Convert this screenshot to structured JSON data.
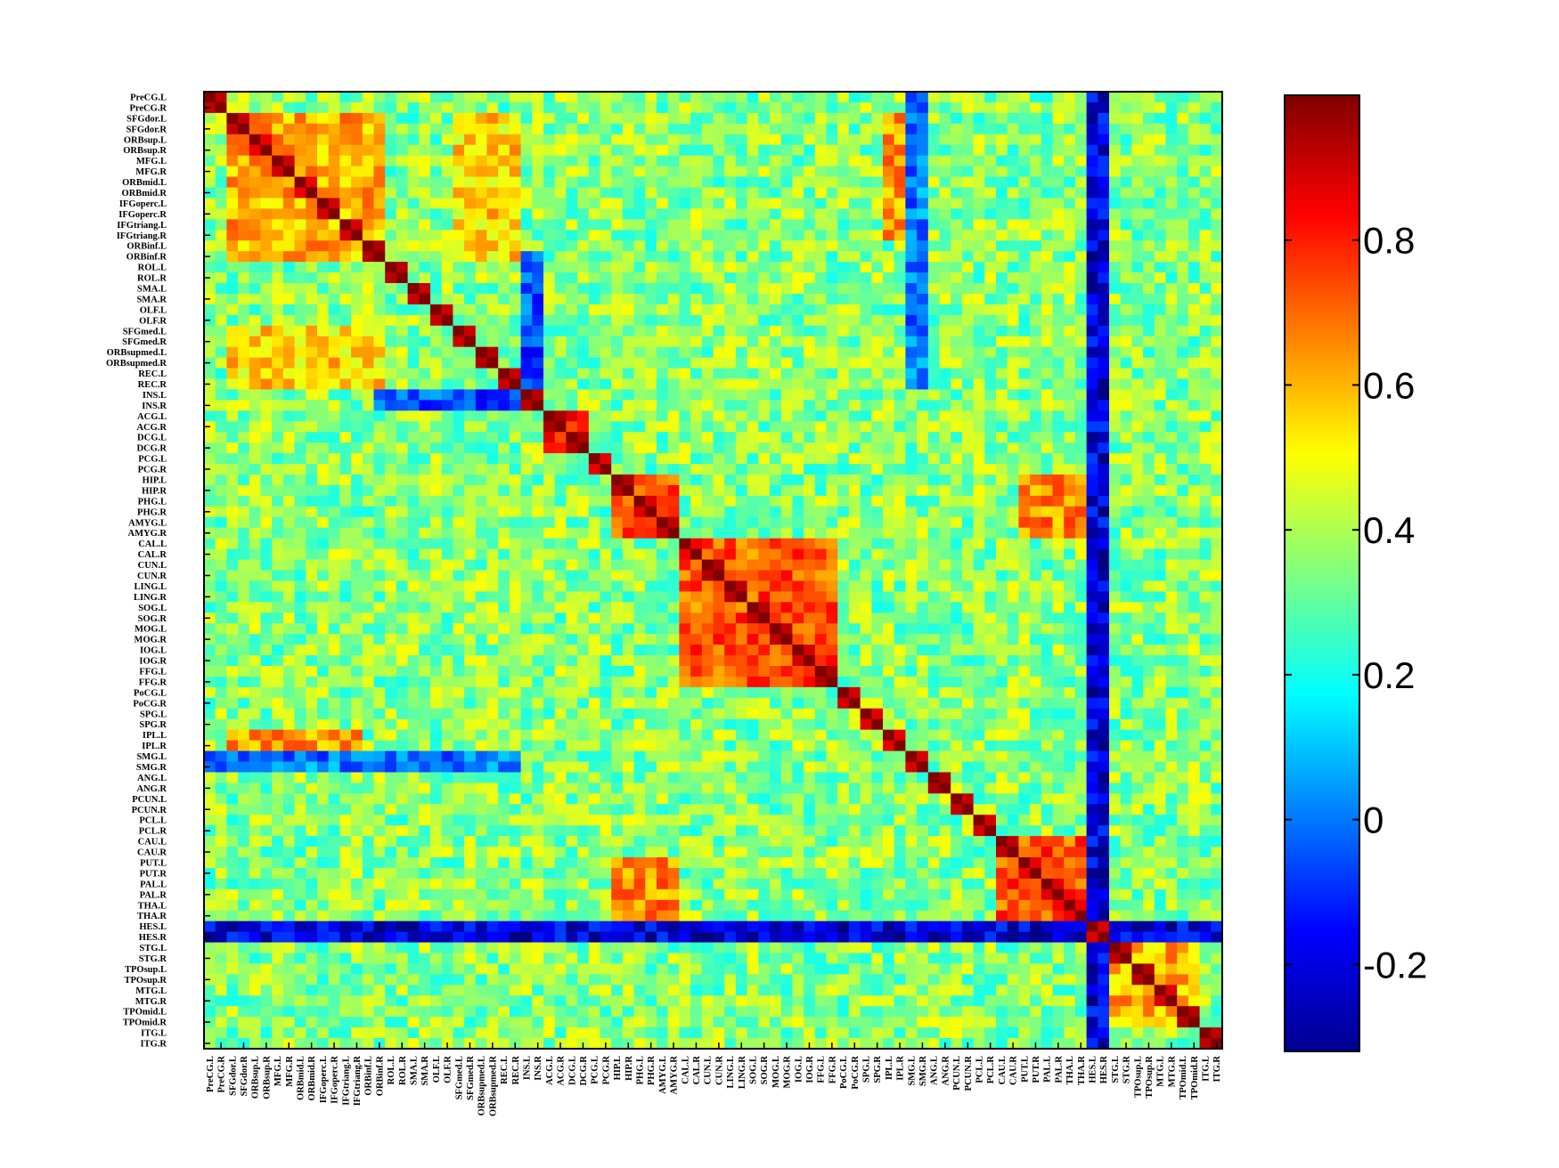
{
  "chart_data": {
    "type": "heatmap",
    "title": "",
    "xlabel": "",
    "ylabel": "",
    "labels": [
      "PreCG.L",
      "PreCG.R",
      "SFGdor.L",
      "SFGdor.R",
      "ORBsup.L",
      "ORBsup.R",
      "MFG.L",
      "MFG.R",
      "ORBmid.L",
      "ORBmid.R",
      "IFGoperc.L",
      "IFGoperc.R",
      "IFGtriang.L",
      "IFGtriang.R",
      "ORBinf.L",
      "ORBinf.R",
      "ROL.L",
      "ROL.R",
      "SMA.L",
      "SMA.R",
      "OLF.L",
      "OLF.R",
      "SFGmed.L",
      "SFGmed.R",
      "ORBsupmed.L",
      "ORBsupmed.R",
      "REC.L",
      "REC.R",
      "INS.L",
      "INS.R",
      "ACG.L",
      "ACG.R",
      "DCG.L",
      "DCG.R",
      "PCG.L",
      "PCG.R",
      "HIP.L",
      "HIP.R",
      "PHG.L",
      "PHG.R",
      "AMYG.L",
      "AMYG.R",
      "CAL.L",
      "CAL.R",
      "CUN.L",
      "CUN.R",
      "LING.L",
      "LING.R",
      "SOG.L",
      "SOG.R",
      "MOG.L",
      "MOG.R",
      "IOG.L",
      "IOG.R",
      "FFG.L",
      "FFG.R",
      "PoCG.L",
      "PoCG.R",
      "SPG.L",
      "SPG.R",
      "IPL.L",
      "IPL.R",
      "SMG.L",
      "SMG.R",
      "ANG.L",
      "ANG.R",
      "PCUN.L",
      "PCUN.R",
      "PCL.L",
      "PCL.R",
      "CAU.L",
      "CAU.R",
      "PUT.L",
      "PUT.R",
      "PAL.L",
      "PAL.R",
      "THA.L",
      "THA.R",
      "HES.L",
      "HES.R",
      "STG.L",
      "STG.R",
      "TPOsup.L",
      "TPOsup.R",
      "MTG.L",
      "MTG.R",
      "TPOmid.L",
      "TPOmid.R",
      "ITG.L",
      "ITG.R"
    ],
    "colorscale": "jet",
    "clim": [
      -0.32,
      1.0
    ],
    "colorbar_ticks": [
      -0.2,
      0,
      0.2,
      0.4,
      0.6,
      0.8
    ],
    "colorbar_tick_labels": [
      "-0.2",
      "0",
      "0.2",
      "0.4",
      "0.6",
      "0.8"
    ],
    "diagonal": 1.0,
    "blocks": [
      {
        "rows": [
          "SFGdor.L",
          "ORBinf.R"
        ],
        "cols": [
          "SFGdor.L",
          "ORBinf.R"
        ],
        "value": 0.6
      },
      {
        "rows": [
          "SFGdor.L",
          "ORBinf.R"
        ],
        "cols": [
          "SFGmed.L",
          "REC.R"
        ],
        "value": 0.55
      },
      {
        "rows": [
          "ACG.L",
          "DCG.R"
        ],
        "cols": [
          "ACG.L",
          "DCG.R"
        ],
        "value": 0.78
      },
      {
        "rows": [
          "HIP.L",
          "AMYG.R"
        ],
        "cols": [
          "HIP.L",
          "AMYG.R"
        ],
        "value": 0.72
      },
      {
        "rows": [
          "CAL.L",
          "FFG.R"
        ],
        "cols": [
          "CAL.L",
          "FFG.R"
        ],
        "value": 0.72
      },
      {
        "rows": [
          "CAU.L",
          "THA.R"
        ],
        "cols": [
          "CAU.L",
          "THA.R"
        ],
        "value": 0.72
      },
      {
        "rows": [
          "STG.L",
          "TPOmid.R"
        ],
        "cols": [
          "STG.L",
          "TPOmid.R"
        ],
        "value": 0.6
      },
      {
        "rows": [
          "HES.L",
          "HES.R"
        ],
        "cols": [
          "all"
        ],
        "value": -0.2
      },
      {
        "rows": [
          "INS.L",
          "INS.R"
        ],
        "cols": [
          "ORBinf.R",
          "REC.R"
        ],
        "value": -0.05
      },
      {
        "rows": [
          "SMG.L",
          "SMG.R"
        ],
        "cols": [
          "PreCG.L",
          "REC.R"
        ],
        "value": 0.0
      },
      {
        "rows": [
          "IPL.L",
          "IPL.R"
        ],
        "cols": [
          "SFGdor.L",
          "IFGtriang.R"
        ],
        "value": 0.65
      },
      {
        "rows": [
          "HIP.L",
          "AMYG.R"
        ],
        "cols": [
          "PUT.L",
          "THA.R"
        ],
        "value": 0.65
      }
    ],
    "off_block_mean": 0.35
  }
}
